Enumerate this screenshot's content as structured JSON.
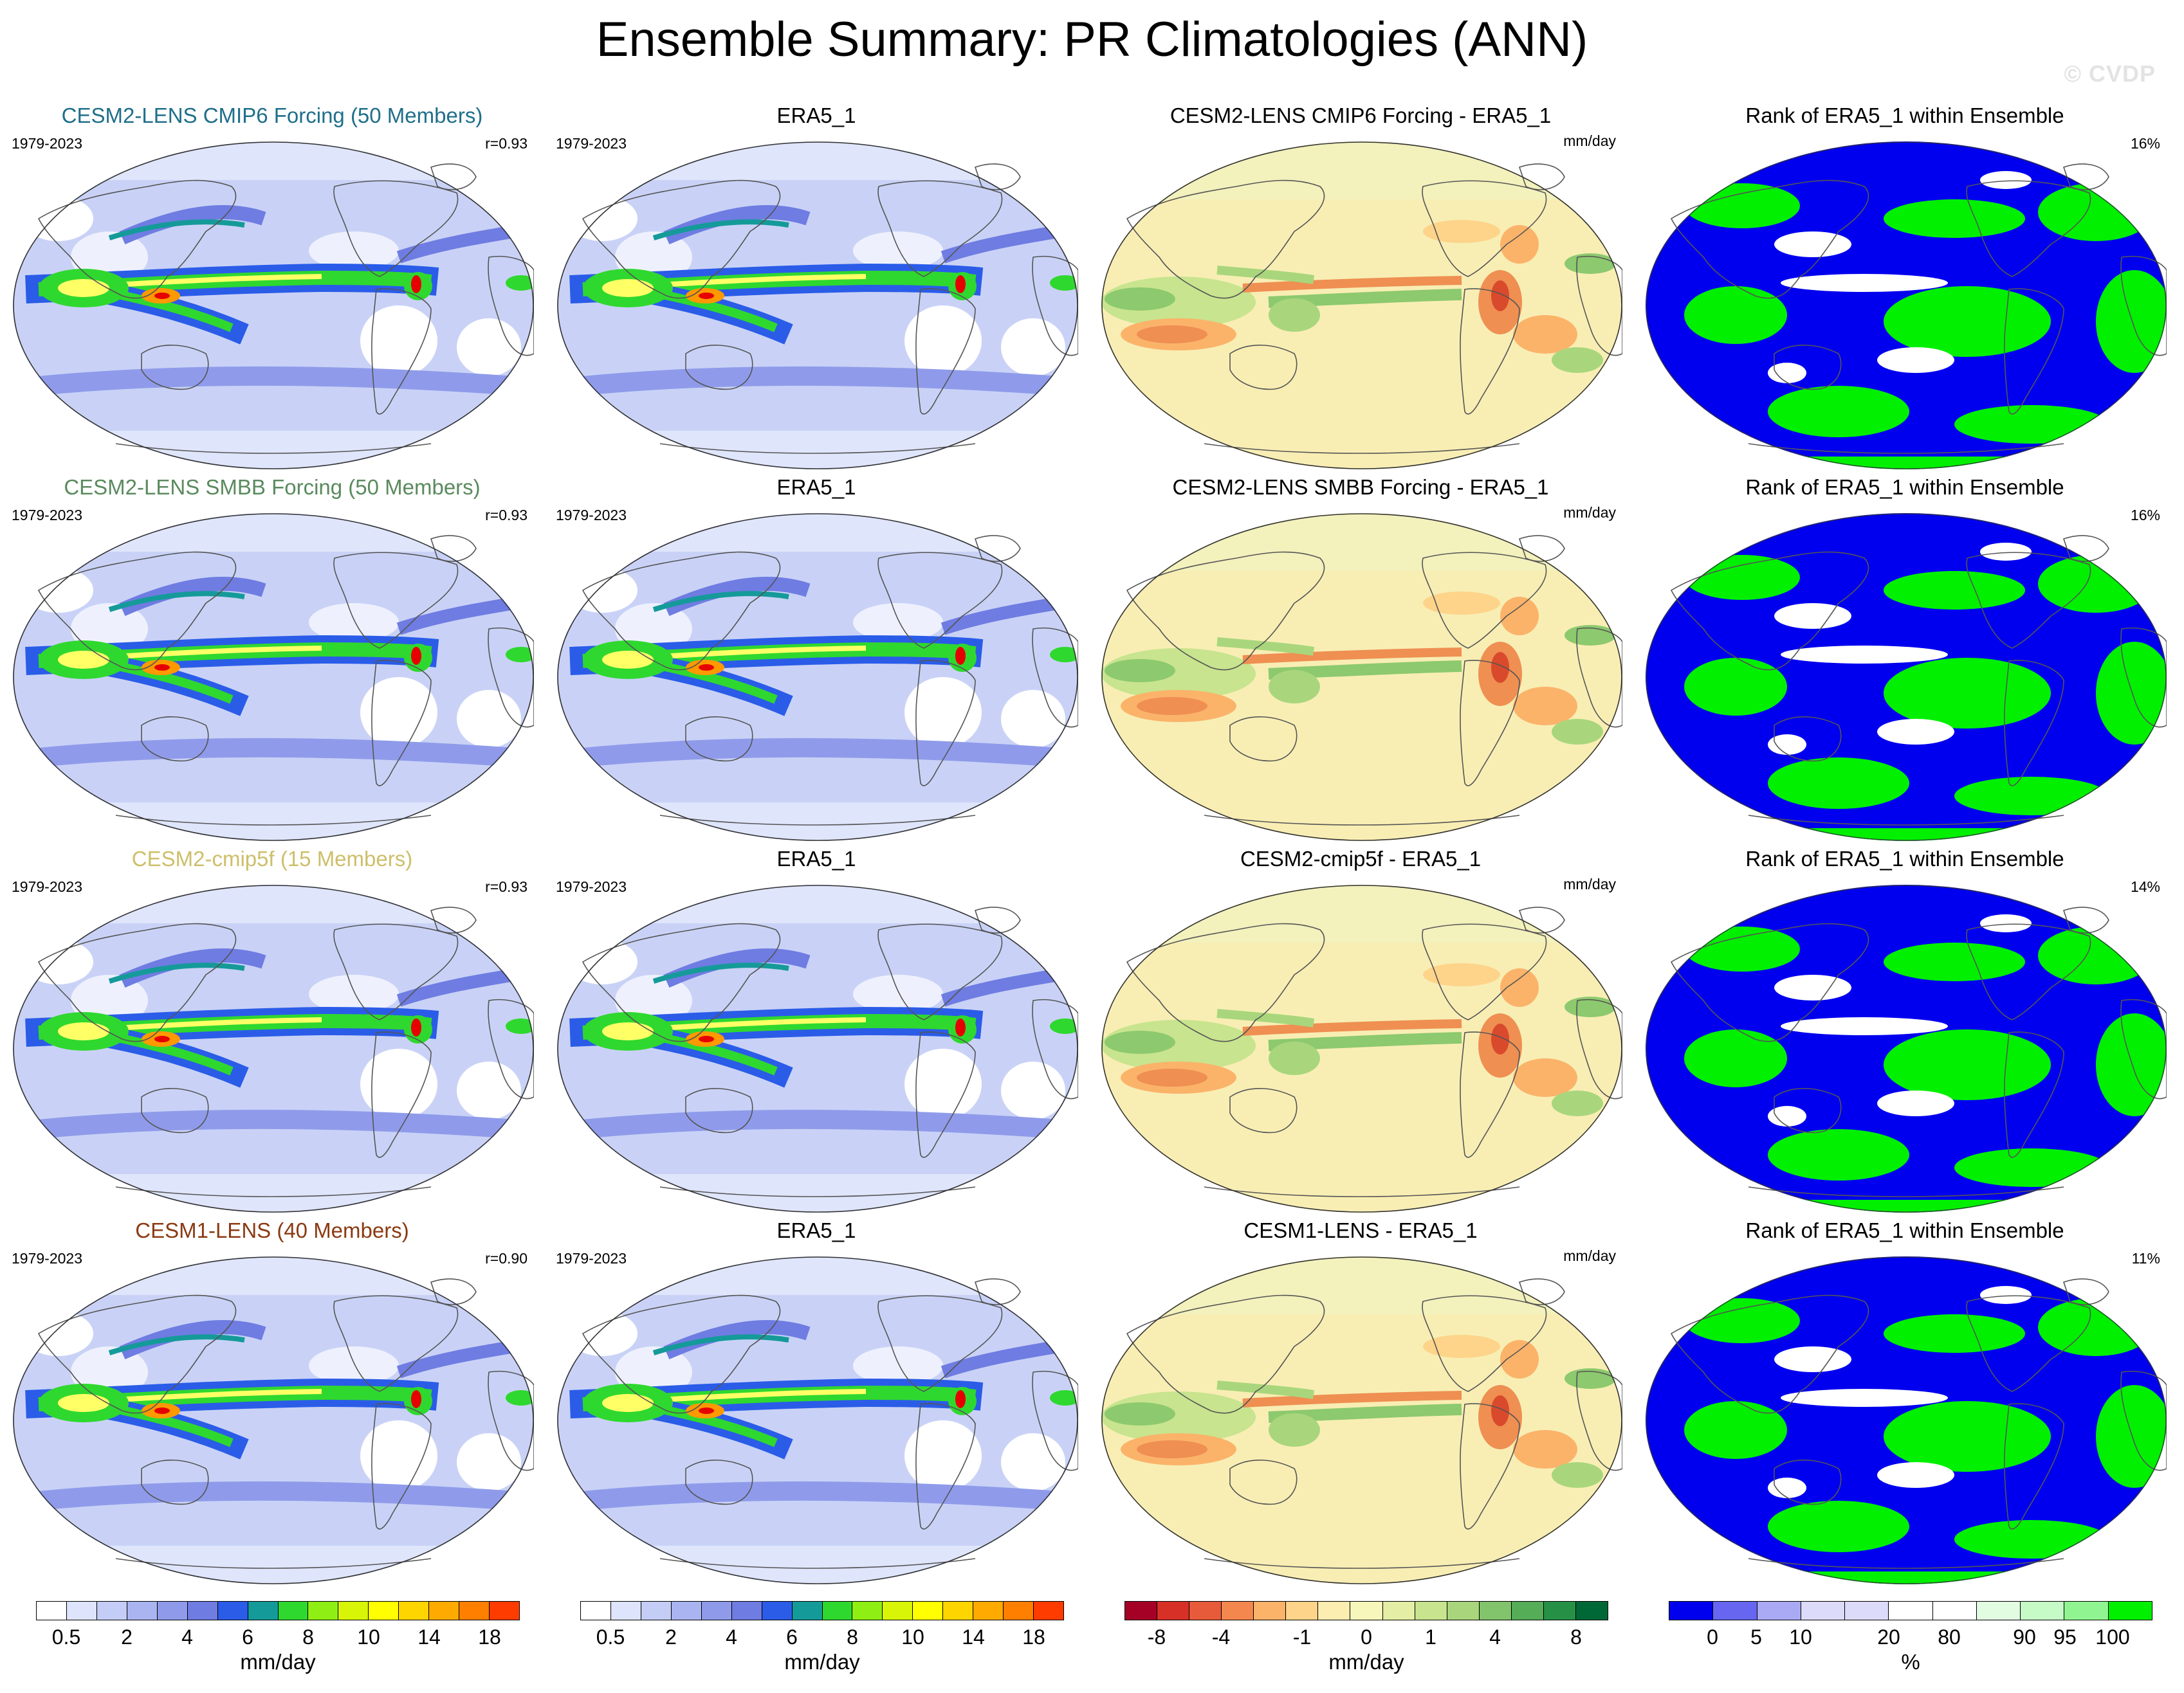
{
  "title": "Ensemble Summary: PR Climatologies (ANN)",
  "watermark": "© CVDP",
  "rows": [
    {
      "ensemble": {
        "title": "CESM2-LENS CMIP6 Forcing (50 Members)",
        "title_color": "#1f6f8b",
        "period": "1979-2023",
        "r": "r=0.93"
      },
      "obs": {
        "title": "ERA5_1",
        "period": "1979-2023"
      },
      "diff": {
        "title": "CESM2-LENS CMIP6 Forcing - ERA5_1",
        "units": "mm/day"
      },
      "rank": {
        "title": "Rank of ERA5_1 within Ensemble",
        "percent": "16%"
      }
    },
    {
      "ensemble": {
        "title": "CESM2-LENS SMBB Forcing (50 Members)",
        "title_color": "#5a8a5e",
        "period": "1979-2023",
        "r": "r=0.93"
      },
      "obs": {
        "title": "ERA5_1",
        "period": "1979-2023"
      },
      "diff": {
        "title": "CESM2-LENS SMBB Forcing - ERA5_1",
        "units": "mm/day"
      },
      "rank": {
        "title": "Rank of ERA5_1 within Ensemble",
        "percent": "16%"
      }
    },
    {
      "ensemble": {
        "title": "CESM2-cmip5f (15 Members)",
        "title_color": "#cdbf6a",
        "period": "1979-2023",
        "r": "r=0.93"
      },
      "obs": {
        "title": "ERA5_1",
        "period": "1979-2023"
      },
      "diff": {
        "title": "CESM2-cmip5f - ERA5_1",
        "units": "mm/day"
      },
      "rank": {
        "title": "Rank of ERA5_1 within Ensemble",
        "percent": "14%"
      }
    },
    {
      "ensemble": {
        "title": "CESM1-LENS (40 Members)",
        "title_color": "#8b3a12",
        "period": "1979-2023",
        "r": "r=0.90"
      },
      "obs": {
        "title": "ERA5_1",
        "period": "1979-2023"
      },
      "diff": {
        "title": "CESM1-LENS - ERA5_1",
        "units": "mm/day"
      },
      "rank": {
        "title": "Rank of ERA5_1 within Ensemble",
        "percent": "11%"
      }
    }
  ],
  "colorbars": [
    {
      "units": "mm/day",
      "colors": [
        "#ffffff",
        "#dde4fb",
        "#c4cdf6",
        "#aab4f0",
        "#8f9bea",
        "#6f7ce2",
        "#2a5ce8",
        "#159a9a",
        "#2fd82f",
        "#8fee14",
        "#d8f508",
        "#ffff00",
        "#ffd500",
        "#ffaa00",
        "#ff7f00",
        "#ff3c00"
      ],
      "ticks": [
        "0.5",
        "2",
        "4",
        "6",
        "8",
        "10",
        "14",
        "18"
      ]
    },
    {
      "units": "mm/day",
      "colors": [
        "#ffffff",
        "#dde4fb",
        "#c4cdf6",
        "#aab4f0",
        "#8f9bea",
        "#6f7ce2",
        "#2a5ce8",
        "#159a9a",
        "#2fd82f",
        "#8fee14",
        "#d8f508",
        "#ffff00",
        "#ffd500",
        "#ffaa00",
        "#ff7f00",
        "#ff3c00"
      ],
      "ticks": [
        "0.5",
        "2",
        "4",
        "6",
        "8",
        "10",
        "14",
        "18"
      ]
    },
    {
      "units": "mm/day",
      "colors": [
        "#a50026",
        "#d73027",
        "#e85b3a",
        "#f4874e",
        "#fbb36a",
        "#fdd48a",
        "#fcedb0",
        "#f7f6bb",
        "#e4efa5",
        "#c8e48e",
        "#a9d67c",
        "#82c46b",
        "#55ad58",
        "#269146",
        "#006837"
      ],
      "ticks": [
        "-8",
        "-4",
        "-1",
        "0",
        "1",
        "4",
        "8"
      ]
    },
    {
      "units": "%",
      "colors": [
        "#0000ee",
        "#6666f0",
        "#aaaaf4",
        "#dcdcfa",
        "#dcdcfa",
        "#ffffff",
        "#ffffff",
        "#e2fce2",
        "#c6fac6",
        "#90f590",
        "#00f000"
      ],
      "ticks": [
        "0",
        "5",
        "10",
        "20",
        "80",
        "90",
        "95",
        "100"
      ]
    }
  ],
  "map_colors": {
    "precip_background": "#c9d2f6",
    "precip_light": "#dfe5fb",
    "precip_medium": "#8c97ea",
    "precip_strong": "#2a5ce8",
    "precip_teal": "#159a9a",
    "precip_green": "#2fd82f",
    "precip_yellow": "#ffff66",
    "precip_orange": "#ff9900",
    "precip_red": "#e60000",
    "diff_background": "#f8eeb4",
    "diff_green": "#8dc96e",
    "diff_orange": "#ef8f52",
    "diff_red": "#d94a2c",
    "rank_blue": "#0000ee",
    "rank_green": "#00f000",
    "rank_white": "#ffffff"
  }
}
